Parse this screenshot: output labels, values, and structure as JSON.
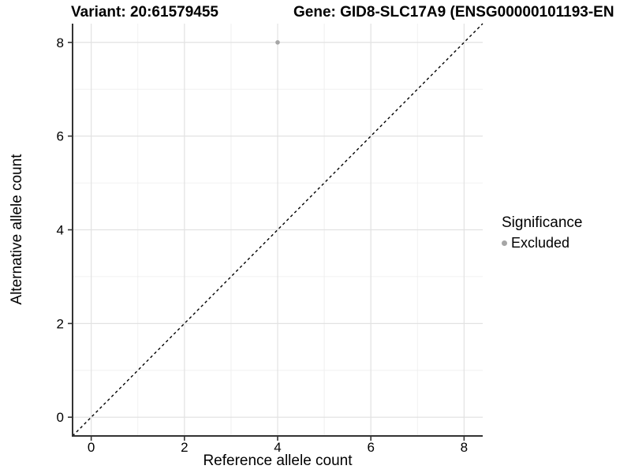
{
  "titles": {
    "variant": "Variant: 20:61579455",
    "gene": "Gene: GID8-SLC17A9 (ENSG00000101193-EN"
  },
  "chart_data": {
    "type": "scatter",
    "xlabel": "Reference allele count",
    "ylabel": "Alternative allele count",
    "xlim": [
      -0.4,
      8.4
    ],
    "ylim": [
      -0.4,
      8.4
    ],
    "x_major_ticks": [
      0,
      2,
      4,
      6,
      8
    ],
    "x_minor_ticks": [
      1,
      3,
      5,
      7
    ],
    "y_major_ticks": [
      0,
      2,
      4,
      6,
      8
    ],
    "y_minor_ticks": [
      1,
      3,
      5,
      7
    ],
    "grid": true,
    "points": [
      {
        "x": 4,
        "y": 8,
        "series": "Excluded"
      }
    ],
    "reference_line": {
      "slope": 1,
      "intercept": 0,
      "style": "dashed"
    },
    "legend": {
      "title": "Significance",
      "position": "right",
      "items": [
        {
          "label": "Excluded",
          "color": "#a6a6a6",
          "marker": "circle"
        }
      ]
    },
    "colors": {
      "point": "#a6a6a6",
      "grid_major": "#e2e2e2",
      "grid_minor": "#f0f0f0",
      "axis_line": "#333333",
      "tick_label": "#000000",
      "dashed_line": "#000000"
    }
  }
}
